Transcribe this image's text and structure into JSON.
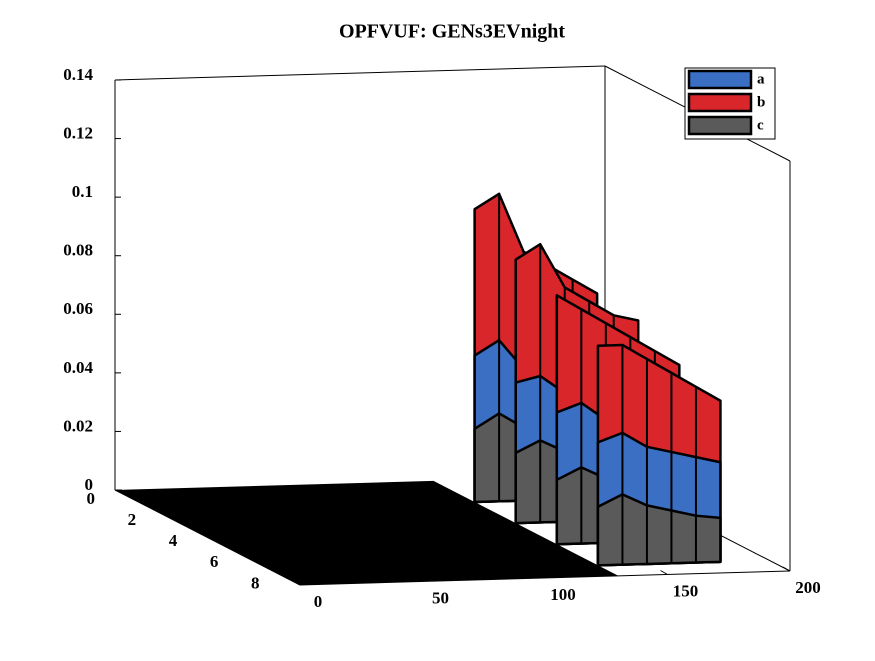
{
  "chart_data": {
    "type": "surface3d",
    "title": "OPFVUF: GENs3EVnight",
    "x": [
      130,
      140,
      150,
      160,
      170,
      180
    ],
    "rows": [
      2,
      4,
      6,
      8
    ],
    "xlim": [
      0,
      200
    ],
    "ylim": [
      0,
      9
    ],
    "zlim": [
      0,
      0.14
    ],
    "xticks": [
      0,
      50,
      100,
      150,
      200
    ],
    "yticks": [
      0,
      2,
      4,
      6,
      8
    ],
    "zticks": [
      0,
      0.02,
      0.04,
      0.06,
      0.08,
      0.1,
      0.12,
      0.14
    ],
    "legend": "top-right",
    "series": [
      {
        "name": "a",
        "color": "#3b6fc4",
        "values": [
          [
            0.05,
            0.055,
            0.045,
            0.045,
            0.04,
            0.04
          ],
          [
            0.048,
            0.05,
            0.044,
            0.042,
            0.04,
            0.038
          ],
          [
            0.045,
            0.048,
            0.042,
            0.04,
            0.038,
            0.036
          ],
          [
            0.042,
            0.045,
            0.04,
            0.038,
            0.036,
            0.034
          ]
        ]
      },
      {
        "name": "b",
        "color": "#d9262b",
        "values": [
          [
            0.1,
            0.105,
            0.085,
            0.08,
            0.075,
            0.07
          ],
          [
            0.09,
            0.095,
            0.08,
            0.075,
            0.07,
            0.068
          ],
          [
            0.085,
            0.08,
            0.075,
            0.07,
            0.065,
            0.06
          ],
          [
            0.075,
            0.075,
            0.07,
            0.065,
            0.06,
            0.055
          ]
        ]
      },
      {
        "name": "c",
        "color": "#5a5a5a",
        "values": [
          [
            0.025,
            0.03,
            0.025,
            0.02,
            0.02,
            0.018
          ],
          [
            0.024,
            0.028,
            0.024,
            0.02,
            0.019,
            0.017
          ],
          [
            0.022,
            0.026,
            0.022,
            0.019,
            0.018,
            0.016
          ],
          [
            0.02,
            0.024,
            0.02,
            0.018,
            0.016,
            0.015
          ]
        ]
      }
    ]
  }
}
